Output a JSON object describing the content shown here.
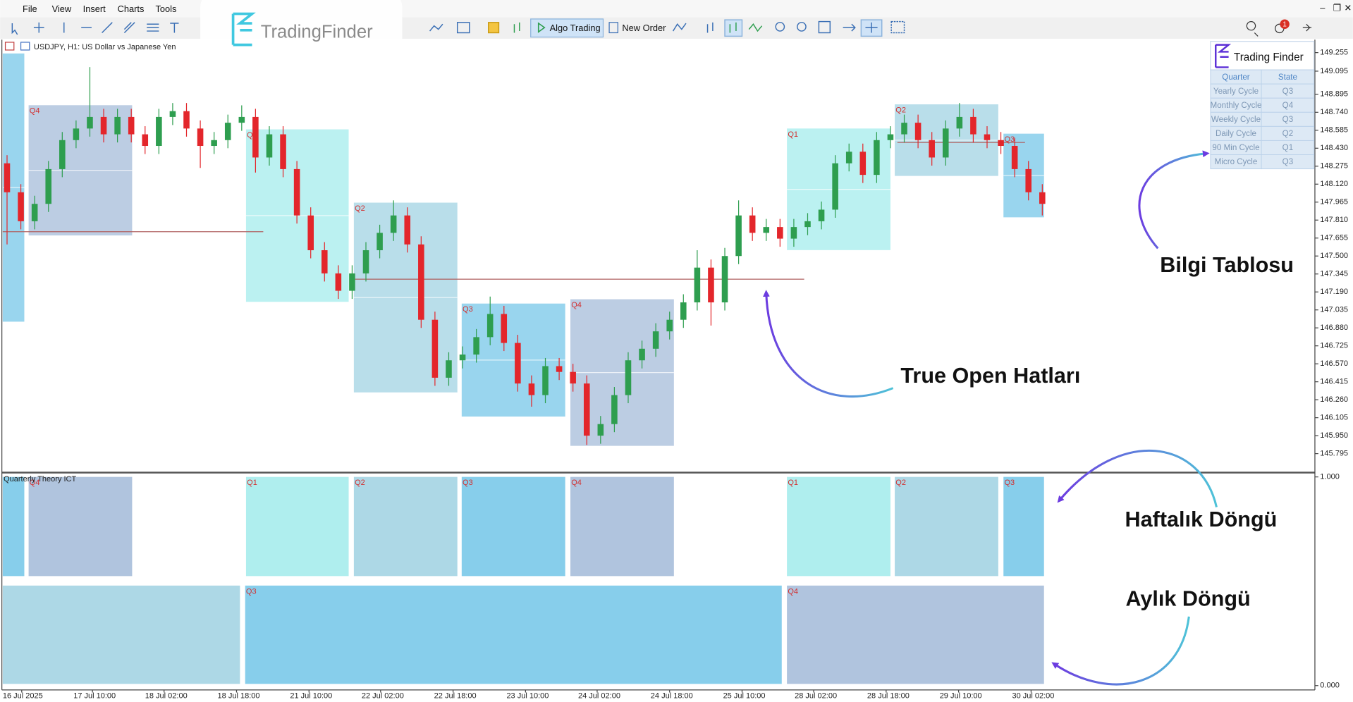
{
  "menu": [
    "File",
    "View",
    "Insert",
    "Charts",
    "Tools"
  ],
  "toolbar": {
    "algo_trading": "Algo Trading",
    "new_order": "New Order",
    "notifications": "1"
  },
  "watermark": "TradingFinder",
  "chart": {
    "symbol": "USDJPY, H1:  US Dollar vs Japanese Yen",
    "open": [
      148.3,
      148.05,
      147.8,
      147.95,
      148.25,
      148.5,
      148.6,
      148.7,
      148.55,
      148.7,
      148.55,
      148.45,
      148.7,
      148.75,
      148.6,
      148.45,
      148.5,
      148.65,
      148.7,
      148.35,
      148.55,
      148.25,
      147.85,
      147.55,
      147.35,
      147.2,
      147.35,
      147.55,
      147.7,
      147.85,
      147.6,
      146.95,
      146.45,
      146.6,
      146.65,
      146.8,
      147.0,
      146.75,
      146.4,
      146.3,
      146.55,
      146.5,
      146.4,
      145.95,
      146.05,
      146.3,
      146.6,
      146.7,
      146.85,
      146.95,
      147.1,
      147.4,
      147.1,
      147.5,
      147.85,
      147.7,
      147.75,
      147.65,
      147.75,
      147.8,
      147.9,
      148.3,
      148.4,
      148.2,
      148.5,
      148.55,
      148.65,
      148.5,
      148.35,
      148.6,
      148.7,
      148.55,
      148.5,
      148.45,
      148.25,
      148.05
    ],
    "high": [
      148.37,
      148.12,
      148.02,
      148.32,
      148.57,
      148.67,
      149.13,
      148.77,
      148.77,
      148.77,
      148.62,
      148.77,
      148.82,
      148.82,
      148.67,
      148.57,
      148.72,
      148.8,
      148.77,
      148.62,
      148.62,
      148.32,
      147.92,
      147.62,
      147.42,
      147.42,
      147.62,
      147.77,
      147.98,
      147.92,
      147.67,
      147.02,
      146.67,
      146.72,
      146.87,
      147.15,
      147.07,
      146.82,
      146.47,
      146.62,
      146.62,
      146.57,
      146.47,
      146.12,
      146.37,
      146.67,
      146.77,
      146.92,
      147.02,
      147.17,
      147.55,
      147.47,
      147.57,
      147.98,
      147.92,
      147.82,
      147.82,
      147.82,
      147.87,
      147.97,
      148.37,
      148.47,
      148.47,
      148.57,
      148.62,
      148.72,
      148.72,
      148.57,
      148.67,
      148.82,
      148.77,
      148.62,
      148.57,
      148.52,
      148.32,
      148.12
    ],
    "low": [
      147.6,
      147.73,
      147.73,
      147.88,
      148.18,
      148.43,
      148.53,
      148.48,
      148.48,
      148.48,
      148.38,
      148.38,
      148.63,
      148.53,
      148.26,
      148.38,
      148.43,
      148.58,
      148.22,
      148.28,
      148.18,
      147.78,
      147.48,
      147.28,
      147.13,
      147.13,
      147.28,
      147.48,
      147.63,
      147.53,
      146.88,
      146.38,
      146.38,
      146.53,
      146.58,
      146.73,
      146.68,
      146.33,
      146.2,
      146.23,
      146.43,
      146.33,
      145.87,
      145.88,
      145.98,
      146.23,
      146.53,
      146.63,
      146.78,
      146.88,
      147.03,
      146.9,
      147.03,
      147.43,
      147.63,
      147.63,
      147.58,
      147.58,
      147.68,
      147.73,
      147.83,
      148.23,
      148.13,
      148.13,
      148.43,
      148.48,
      148.43,
      148.28,
      148.28,
      148.53,
      148.48,
      148.43,
      148.38,
      148.18,
      147.98,
      147.85
    ],
    "close": [
      148.05,
      147.8,
      147.95,
      148.25,
      148.5,
      148.6,
      148.7,
      148.55,
      148.7,
      148.55,
      148.45,
      148.7,
      148.75,
      148.6,
      148.45,
      148.5,
      148.65,
      148.7,
      148.35,
      148.55,
      148.25,
      147.85,
      147.55,
      147.35,
      147.2,
      147.35,
      147.55,
      147.7,
      147.85,
      147.6,
      146.95,
      146.45,
      146.6,
      146.65,
      146.8,
      147.0,
      146.75,
      146.4,
      146.3,
      146.55,
      146.5,
      146.4,
      145.95,
      146.05,
      146.3,
      146.6,
      146.7,
      146.85,
      146.95,
      147.1,
      147.4,
      147.1,
      147.5,
      147.85,
      147.7,
      147.75,
      147.65,
      147.75,
      147.8,
      147.9,
      148.3,
      148.4,
      148.2,
      148.5,
      148.55,
      148.65,
      148.5,
      148.35,
      148.6,
      148.7,
      148.55,
      148.5,
      148.45,
      148.25,
      148.05,
      147.95
    ],
    "price_ticks": [
      149.255,
      149.095,
      148.895,
      {
        "value": 148.74,
        "label": "148.740"
      },
      148.585,
      {
        "value": 148.43,
        "label": "148.430"
      },
      148.275,
      {
        "value": 148.12,
        "label": "148.120"
      },
      147.965,
      {
        "value": 147.81,
        "label": "147.810"
      },
      147.655,
      {
        "value": 147.5,
        "label": "147.500"
      },
      147.345,
      {
        "value": 147.19,
        "label": "147.190"
      },
      147.035,
      {
        "value": 146.88,
        "label": "146.880"
      },
      146.725,
      {
        "value": 146.57,
        "label": "146.570"
      },
      146.415,
      {
        "value": 146.26,
        "label": "146.260"
      },
      146.105,
      {
        "value": 145.95,
        "label": "145.950"
      },
      145.795
    ],
    "time_labels": [
      "16 Jul 2025",
      "17 Jul 10:00",
      "18 Jul 02:00",
      "18 Jul 18:00",
      "21 Jul 10:00",
      "22 Jul 02:00",
      "22 Jul 18:00",
      "23 Jul 10:00",
      "24 Jul 02:00",
      "24 Jul 18:00",
      "25 Jul 10:00",
      "28 Jul 02:00",
      "28 Jul 18:00",
      "29 Jul 10:00",
      "30 Jul 02:00"
    ],
    "true_open_lines": [
      147.71,
      147.3,
      148.48
    ],
    "quarter_labels": [
      "Q4",
      "Q1",
      "Q2",
      "Q3",
      "Q4",
      "Q1",
      "Q2",
      "Q3"
    ]
  },
  "indicator": {
    "name": "Quarterly Theory ICT",
    "ticks": [
      {
        "value": 1,
        "label": "1.000"
      },
      {
        "value": 0,
        "label": "0.000"
      }
    ],
    "weekly_labels": [
      "Q4",
      "Q1",
      "Q2",
      "Q3",
      "Q4",
      "Q1",
      "Q2",
      "Q3"
    ],
    "monthly_labels": [
      "Q3",
      "Q4"
    ]
  },
  "info_table": {
    "logo": "Trading Finder",
    "header": [
      "Quarter",
      "State"
    ],
    "rows": [
      [
        "Yearly Cycle",
        "Q3"
      ],
      [
        "Monthly Cycle",
        "Q4"
      ],
      [
        "Weekly Cycle",
        "Q3"
      ],
      [
        "Daily Cycle",
        "Q2"
      ],
      [
        "90 Min Cycle",
        "Q1"
      ],
      [
        "Micro Cycle",
        "Q3"
      ]
    ]
  },
  "annotations": [
    "Bilgi Tablosu",
    "True Open Hatları",
    "Haftalık Döngü",
    "Aylık Döngü"
  ]
}
